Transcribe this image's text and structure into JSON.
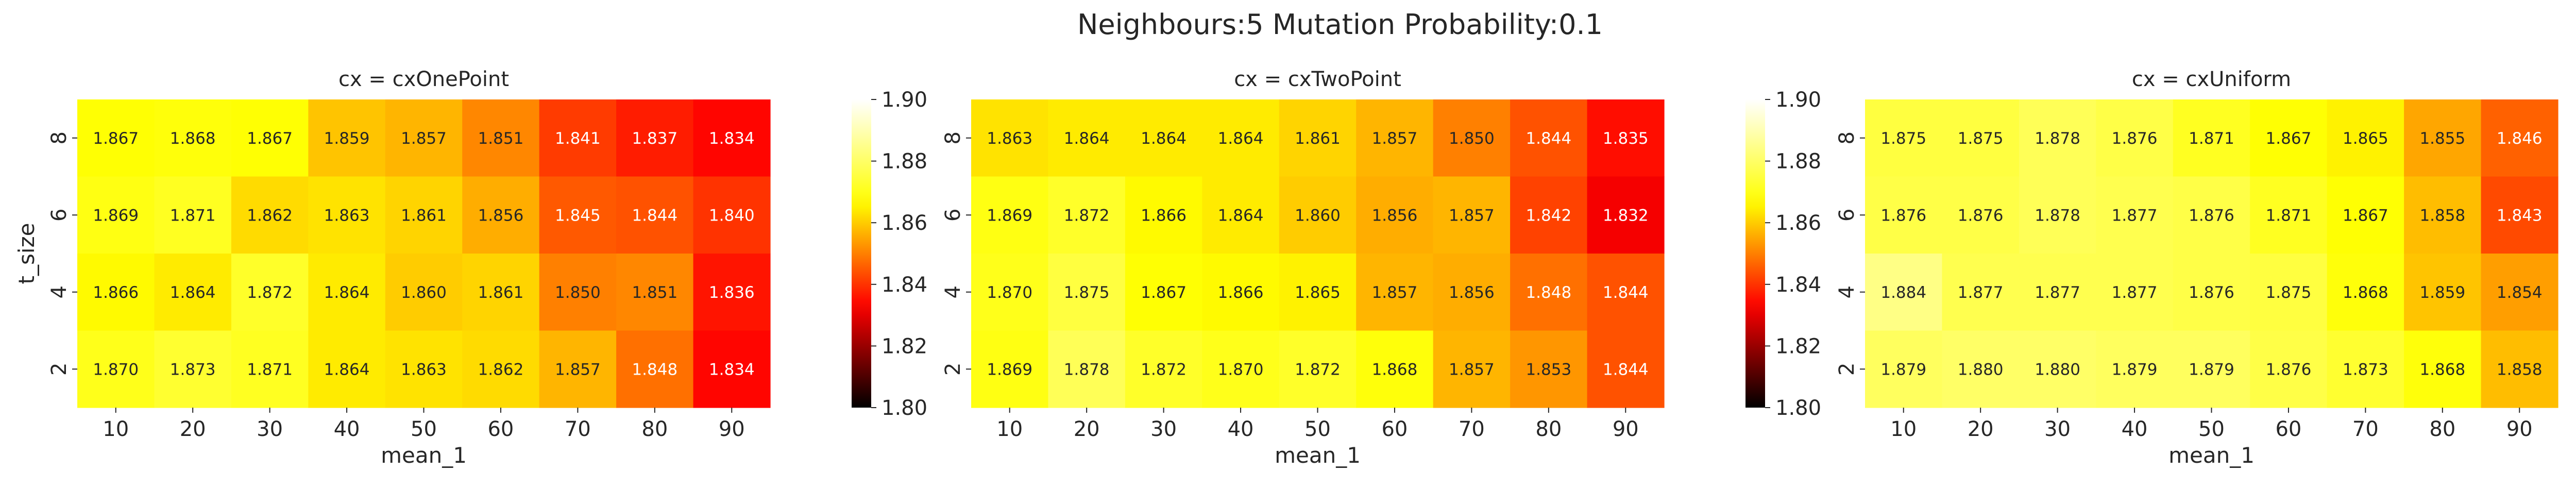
{
  "figure": {
    "suptitle": "Neighbours:5 Mutation Probability:0.1"
  },
  "colormap": {
    "name": "hot",
    "stops": [
      "#000000",
      "#ff0000",
      "#ffff00",
      "#ffffff"
    ]
  },
  "chart_data": [
    {
      "type": "heatmap",
      "title": "cx = cxOnePoint",
      "xlabel": "mean_1",
      "ylabel": "t_size",
      "x": [
        10,
        20,
        30,
        40,
        50,
        60,
        70,
        80,
        90
      ],
      "y": [
        8,
        6,
        4,
        2
      ],
      "values": [
        [
          "1.867",
          "1.868",
          "1.867",
          "1.859",
          "1.857",
          "1.851",
          "1.841",
          "1.837",
          "1.834"
        ],
        [
          "1.869",
          "1.871",
          "1.862",
          "1.863",
          "1.861",
          "1.856",
          "1.845",
          "1.844",
          "1.840"
        ],
        [
          "1.866",
          "1.864",
          "1.872",
          "1.864",
          "1.860",
          "1.861",
          "1.850",
          "1.851",
          "1.836"
        ],
        [
          "1.870",
          "1.873",
          "1.871",
          "1.864",
          "1.863",
          "1.862",
          "1.857",
          "1.848",
          "1.834"
        ]
      ],
      "colorbar": {
        "min": 1.8,
        "max": 1.9,
        "ticks": [
          "1.80",
          "1.82",
          "1.84",
          "1.86",
          "1.88",
          "1.90"
        ]
      }
    },
    {
      "type": "heatmap",
      "title": "cx = cxTwoPoint",
      "xlabel": "mean_1",
      "ylabel": "",
      "x": [
        10,
        20,
        30,
        40,
        50,
        60,
        70,
        80,
        90
      ],
      "y": [
        8,
        6,
        4,
        2
      ],
      "values": [
        [
          "1.863",
          "1.864",
          "1.864",
          "1.864",
          "1.861",
          "1.857",
          "1.850",
          "1.844",
          "1.835"
        ],
        [
          "1.869",
          "1.872",
          "1.866",
          "1.864",
          "1.860",
          "1.856",
          "1.857",
          "1.842",
          "1.832"
        ],
        [
          "1.870",
          "1.875",
          "1.867",
          "1.866",
          "1.865",
          "1.857",
          "1.856",
          "1.848",
          "1.844"
        ],
        [
          "1.869",
          "1.878",
          "1.872",
          "1.870",
          "1.872",
          "1.868",
          "1.857",
          "1.853",
          "1.844"
        ]
      ],
      "colorbar": {
        "min": 1.8,
        "max": 1.9,
        "ticks": [
          "1.80",
          "1.82",
          "1.84",
          "1.86",
          "1.88",
          "1.90"
        ]
      }
    },
    {
      "type": "heatmap",
      "title": "cx = cxUniform",
      "xlabel": "mean_1",
      "ylabel": "",
      "x": [
        10,
        20,
        30,
        40,
        50,
        60,
        70,
        80,
        90
      ],
      "y": [
        8,
        6,
        4,
        2
      ],
      "values": [
        [
          "1.875",
          "1.875",
          "1.878",
          "1.876",
          "1.871",
          "1.867",
          "1.865",
          "1.855",
          "1.846"
        ],
        [
          "1.876",
          "1.876",
          "1.878",
          "1.877",
          "1.876",
          "1.871",
          "1.867",
          "1.858",
          "1.843"
        ],
        [
          "1.884",
          "1.877",
          "1.877",
          "1.877",
          "1.876",
          "1.875",
          "1.868",
          "1.859",
          "1.854"
        ],
        [
          "1.879",
          "1.880",
          "1.880",
          "1.879",
          "1.879",
          "1.876",
          "1.873",
          "1.868",
          "1.858"
        ]
      ],
      "colorbar": {
        "min": 1.8,
        "max": 1.9,
        "ticks": [
          "1.80",
          "1.82",
          "1.84",
          "1.86",
          "1.88",
          "1.90"
        ]
      }
    }
  ]
}
